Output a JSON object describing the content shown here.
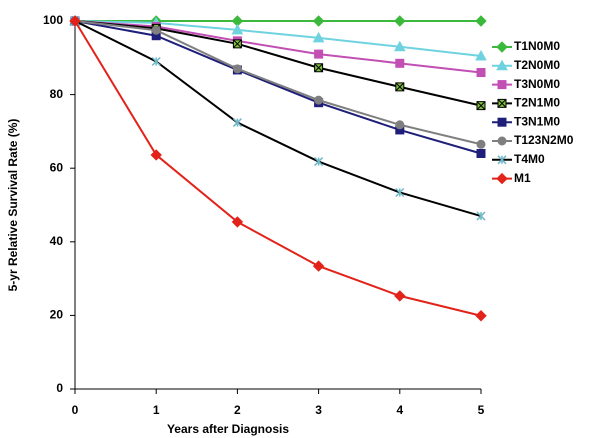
{
  "chart_data": {
    "type": "line",
    "x_label": "Years after Diagnosis",
    "y_label": "5-yr Relative Survival Rate (%)",
    "x": [
      0,
      1,
      2,
      3,
      4,
      5
    ],
    "xlim": [
      0,
      5
    ],
    "xticks": [
      0,
      1,
      2,
      3,
      4,
      5
    ],
    "ylim": [
      0,
      100
    ],
    "yticks": [
      0,
      20,
      40,
      60,
      80,
      100
    ],
    "grid": false,
    "legend": "right",
    "series": [
      {
        "name": "T1N0M0",
        "color": "#3cb93c",
        "marker": "diamond",
        "values": [
          100,
          100,
          100,
          100,
          100,
          100
        ]
      },
      {
        "name": "T2N0M0",
        "color": "#6fd3df",
        "marker": "triangle",
        "values": [
          100,
          99.5,
          97.6,
          95.4,
          93,
          90.5
        ]
      },
      {
        "name": "T3N0M0",
        "color": "#c24fb4",
        "marker": "square",
        "values": [
          100,
          98.5,
          94.6,
          91,
          88.5,
          86
        ]
      },
      {
        "name": "T2N1M0",
        "color": "#000000",
        "marker": "xsquare",
        "values": [
          100,
          98,
          93.8,
          87.3,
          82.1,
          77
        ]
      },
      {
        "name": "T3N1M0",
        "color": "#1f1f7a",
        "marker": "square",
        "values": [
          100,
          96,
          86.7,
          77.8,
          70.4,
          64
        ]
      },
      {
        "name": "T123N2M0",
        "color": "#7f7f7f",
        "marker": "circle",
        "values": [
          100,
          97.5,
          87,
          78.5,
          71.8,
          66.5
        ]
      },
      {
        "name": "T4M0",
        "color": "#000000",
        "marker": "star",
        "values": [
          100,
          89,
          72.4,
          61.8,
          53.4,
          47
        ]
      },
      {
        "name": "M1",
        "color": "#e2231a",
        "marker": "diamond",
        "values": [
          100,
          63.6,
          45.4,
          33.4,
          25.3,
          19.9
        ]
      }
    ]
  }
}
